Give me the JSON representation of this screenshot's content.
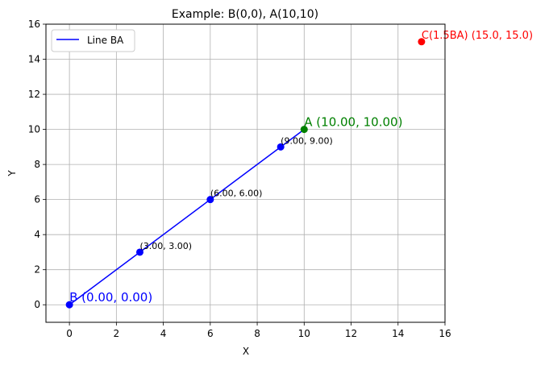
{
  "chart_data": {
    "type": "scatter",
    "title": "Example: B(0,0), A(10,10)",
    "xlabel": "X",
    "ylabel": "Y",
    "xlim": [
      -1,
      16
    ],
    "ylim": [
      -1,
      16
    ],
    "xticks": [
      0,
      2,
      4,
      6,
      8,
      10,
      12,
      14,
      16
    ],
    "yticks": [
      0,
      2,
      4,
      6,
      8,
      10,
      12,
      14,
      16
    ],
    "grid": true,
    "legend": {
      "placement": "top-left",
      "entries": [
        "Line BA"
      ]
    },
    "series": [
      {
        "name": "Line BA",
        "kind": "line",
        "color": "#0000ff",
        "x": [
          0,
          10
        ],
        "y": [
          0,
          10
        ]
      }
    ],
    "points": [
      {
        "id": "B",
        "x": 0,
        "y": 0,
        "color": "#0000ff",
        "label": "B (0.00, 0.00)",
        "label_size": "large"
      },
      {
        "id": "p1",
        "x": 3,
        "y": 3,
        "color": "#0000ff",
        "label": "(3.00, 3.00)",
        "label_size": "small",
        "label_color": "#000000"
      },
      {
        "id": "p2",
        "x": 6,
        "y": 6,
        "color": "#0000ff",
        "label": "(6.00, 6.00)",
        "label_size": "small",
        "label_color": "#000000"
      },
      {
        "id": "p3",
        "x": 9,
        "y": 9,
        "color": "#0000ff",
        "label": "(9.00, 9.00)",
        "label_size": "small",
        "label_color": "#000000"
      },
      {
        "id": "A",
        "x": 10,
        "y": 10,
        "color": "#008000",
        "label": "A (10.00, 10.00)",
        "label_size": "large"
      },
      {
        "id": "C",
        "x": 15,
        "y": 15,
        "color": "#ff0000",
        "label": "C(1.5BA) (15.0, 15.0)",
        "label_size": "medium"
      }
    ]
  }
}
